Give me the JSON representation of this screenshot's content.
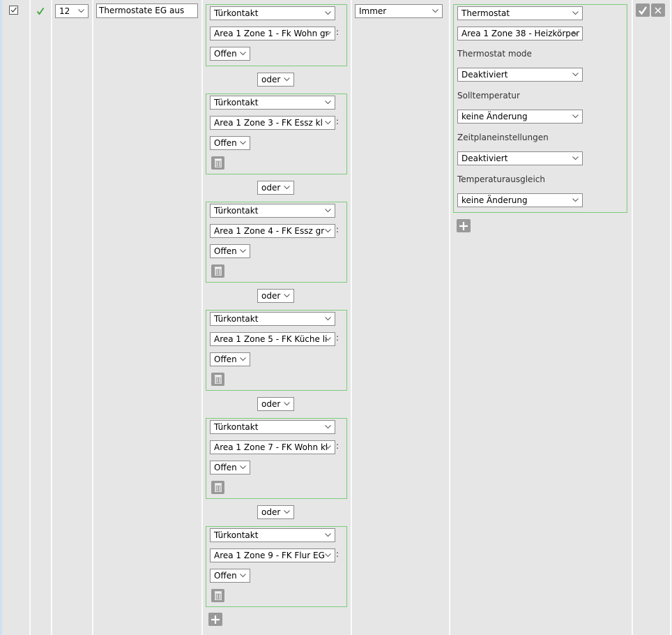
{
  "row": {
    "selected": true,
    "active_icon": "check-icon",
    "priority": "12",
    "name": "Thermostate EG aus",
    "conditions": [
      {
        "type": "Türkontakt",
        "device": "Area 1 Zone 1 - Fk Wohn gr",
        "state": "Offen",
        "deletable": false
      },
      {
        "type": "Türkontakt",
        "device": "Area 1 Zone 3 - FK Essz kl",
        "state": "Offen",
        "deletable": true
      },
      {
        "type": "Türkontakt",
        "device": "Area 1 Zone 4 - FK Essz gr",
        "state": "Offen",
        "deletable": true
      },
      {
        "type": "Türkontakt",
        "device": "Area 1 Zone 5 - FK Küche li",
        "state": "Offen",
        "deletable": true
      },
      {
        "type": "Türkontakt",
        "device": "Area 1 Zone 7 - FK Wohn kl",
        "state": "Offen",
        "deletable": true
      },
      {
        "type": "Türkontakt",
        "device": "Area 1 Zone 9 - FK Flur EG",
        "state": "Offen",
        "deletable": true
      }
    ],
    "connector": "oder",
    "schedule": "Immer",
    "action": {
      "type": "Thermostat",
      "device": "Area 1 Zone 38 - Heizkörper",
      "fields": [
        {
          "label": "Thermostat mode",
          "value": "Deaktiviert"
        },
        {
          "label": "Solltemperatur",
          "value": "keine Änderung"
        },
        {
          "label": "Zeitplaneinstellungen",
          "value": "Deaktiviert"
        },
        {
          "label": "Temperaturausgleich",
          "value": "keine Änderung"
        }
      ]
    }
  },
  "colors": {
    "background": "#e6e6e6",
    "block_border": "#7ccb7c",
    "check": "#3aa63a",
    "button": "#999999"
  }
}
